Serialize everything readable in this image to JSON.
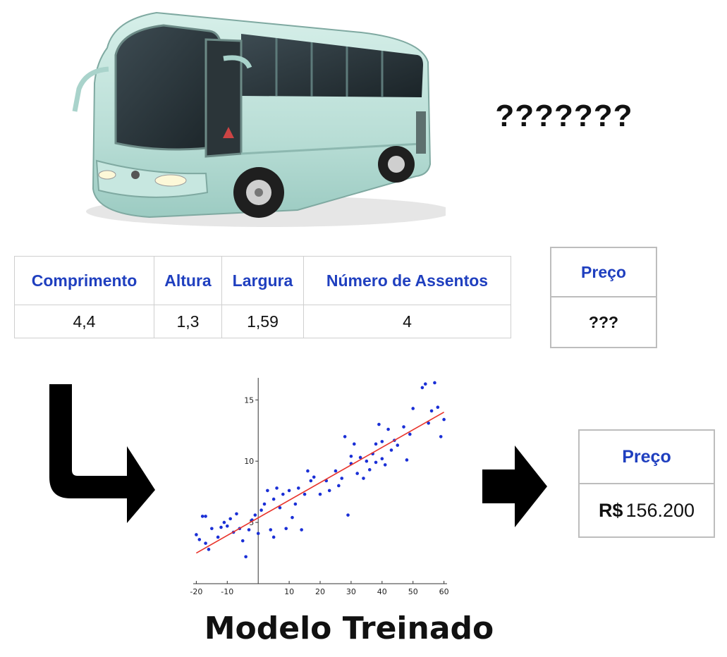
{
  "question_marks": "???????",
  "features_table": {
    "headers": [
      "Comprimento",
      "Altura",
      "Largura",
      "Número de Assentos"
    ],
    "values": [
      "4,4",
      "1,3",
      "1,59",
      "4"
    ]
  },
  "price_unknown": {
    "header": "Preço",
    "value": "???"
  },
  "price_result": {
    "header": "Preço",
    "currency": "R$",
    "value": "156.200"
  },
  "caption": "Modelo Treinado",
  "icons": [
    "bus-image",
    "bend-arrow-icon",
    "right-arrow-icon"
  ],
  "colors": {
    "header_blue": "#1f3fbf",
    "points": "#1a2fd6",
    "fit_line": "#e8332a",
    "bus_body": "#bfe3dc"
  },
  "chart_data": {
    "type": "scatter",
    "title": "",
    "xlabel": "",
    "ylabel": "",
    "xlim": [
      -21,
      61
    ],
    "ylim": [
      0,
      16.8
    ],
    "x_ticks": [
      -20,
      -10,
      10,
      20,
      30,
      40,
      50,
      60
    ],
    "y_ticks": [
      5,
      10,
      15
    ],
    "grid": false,
    "points": [
      [
        -20,
        4.0
      ],
      [
        -19,
        3.6
      ],
      [
        -18,
        5.5
      ],
      [
        -17,
        5.5
      ],
      [
        -17,
        3.3
      ],
      [
        -16,
        2.8
      ],
      [
        -15,
        4.5
      ],
      [
        -13,
        3.8
      ],
      [
        -12,
        4.6
      ],
      [
        -11,
        5.0
      ],
      [
        -10,
        4.7
      ],
      [
        -9,
        5.3
      ],
      [
        -8,
        4.2
      ],
      [
        -7,
        5.7
      ],
      [
        -6,
        4.5
      ],
      [
        -5,
        3.5
      ],
      [
        -4,
        2.2
      ],
      [
        -3,
        4.4
      ],
      [
        -2,
        5.2
      ],
      [
        -1,
        5.6
      ],
      [
        0,
        4.1
      ],
      [
        1,
        6.0
      ],
      [
        2,
        6.5
      ],
      [
        3,
        7.6
      ],
      [
        4,
        4.4
      ],
      [
        5,
        6.9
      ],
      [
        5,
        3.8
      ],
      [
        6,
        7.8
      ],
      [
        7,
        6.2
      ],
      [
        8,
        7.3
      ],
      [
        9,
        4.5
      ],
      [
        10,
        7.6
      ],
      [
        11,
        5.4
      ],
      [
        12,
        6.5
      ],
      [
        13,
        7.8
      ],
      [
        14,
        4.4
      ],
      [
        15,
        7.3
      ],
      [
        16,
        9.2
      ],
      [
        17,
        8.4
      ],
      [
        18,
        8.7
      ],
      [
        20,
        7.3
      ],
      [
        22,
        8.4
      ],
      [
        23,
        7.6
      ],
      [
        25,
        9.2
      ],
      [
        26,
        8.0
      ],
      [
        27,
        8.6
      ],
      [
        28,
        12.0
      ],
      [
        29,
        5.6
      ],
      [
        30,
        9.8
      ],
      [
        30,
        10.4
      ],
      [
        31,
        11.4
      ],
      [
        32,
        9.0
      ],
      [
        33,
        10.3
      ],
      [
        34,
        8.6
      ],
      [
        35,
        10.0
      ],
      [
        36,
        9.3
      ],
      [
        37,
        10.6
      ],
      [
        38,
        9.9
      ],
      [
        38,
        11.4
      ],
      [
        39,
        13.0
      ],
      [
        40,
        11.6
      ],
      [
        40,
        10.2
      ],
      [
        41,
        9.7
      ],
      [
        42,
        12.6
      ],
      [
        43,
        10.9
      ],
      [
        44,
        11.7
      ],
      [
        45,
        11.3
      ],
      [
        47,
        12.8
      ],
      [
        48,
        10.1
      ],
      [
        49,
        12.2
      ],
      [
        50,
        14.3
      ],
      [
        53,
        16.0
      ],
      [
        54,
        16.3
      ],
      [
        55,
        13.1
      ],
      [
        56,
        14.1
      ],
      [
        57,
        16.4
      ],
      [
        58,
        14.4
      ],
      [
        59,
        12.0
      ],
      [
        60,
        13.4
      ]
    ],
    "fit_line": {
      "x": [
        -20,
        60
      ],
      "y": [
        2.5,
        14.0
      ]
    }
  }
}
